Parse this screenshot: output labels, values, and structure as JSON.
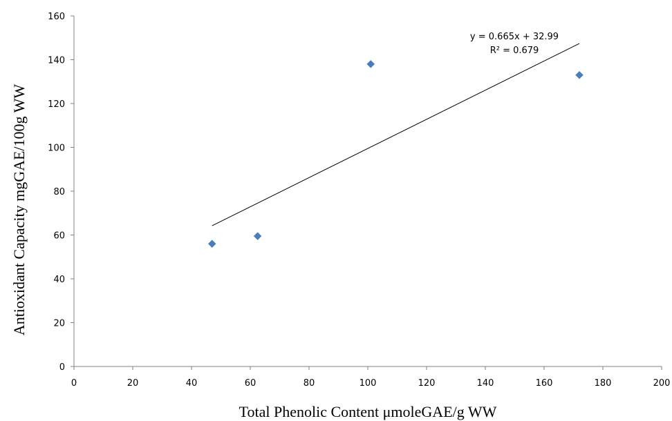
{
  "chart_data": {
    "type": "scatter",
    "xlabel": "Total Phenolic Content μmoleGAE/g WW",
    "ylabel": "Antioxidant  Capacity mgGAE/100g WW",
    "xlim": [
      0,
      200
    ],
    "ylim": [
      0,
      160
    ],
    "x_ticks": [
      0,
      20,
      40,
      60,
      80,
      100,
      120,
      140,
      160,
      180,
      200
    ],
    "y_ticks": [
      0,
      20,
      40,
      60,
      80,
      100,
      120,
      140,
      160
    ],
    "x_tick_labels": [
      "0",
      "20",
      "40",
      "60",
      "80",
      "100",
      "120",
      "140",
      "160",
      "180",
      "200"
    ],
    "y_tick_labels": [
      "0",
      "20",
      "40",
      "60",
      "80",
      "100",
      "120",
      "140",
      "160"
    ],
    "grid": false,
    "series": [
      {
        "points": [
          {
            "x": 47,
            "y": 56
          },
          {
            "x": 62.5,
            "y": 59.5
          },
          {
            "x": 101,
            "y": 138
          },
          {
            "x": 172,
            "y": 133
          }
        ],
        "color": "#4a7ebb",
        "marker": "diamond"
      }
    ],
    "trendline": {
      "slope": 0.665,
      "intercept": 32.99,
      "x_start": 47,
      "x_end": 172,
      "color": "#000000"
    },
    "annotations": [
      "y = 0.665x + 32.99",
      "R² = 0.679"
    ]
  }
}
